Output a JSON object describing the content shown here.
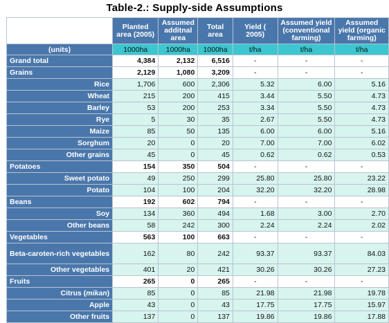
{
  "title": "Table-2.: Supply-side Assumptions",
  "headers": [
    "Planted area (2005)",
    "Assumed additnal area",
    "Total area",
    "Yield ( 2005)",
    "Assumed yield (conventional farming)",
    "Assumed yield (organic farming)"
  ],
  "units_label": "(units)",
  "units": [
    "1000ha",
    "1000ha",
    "1000ha",
    "t/ha",
    "t/ha",
    "t/ha"
  ],
  "rows": [
    {
      "label": "Grand total",
      "kind": "cat",
      "values": [
        "4,384",
        "2,132",
        "6,516",
        "-",
        "-",
        "-"
      ]
    },
    {
      "label": "Grains",
      "kind": "cat",
      "values": [
        "2,129",
        "1,080",
        "3,209",
        "-",
        "-",
        "-"
      ]
    },
    {
      "label": "Rice",
      "kind": "sub",
      "values": [
        "1,706",
        "600",
        "2,306",
        "5.32",
        "6.00",
        "5.16"
      ]
    },
    {
      "label": "Wheat",
      "kind": "sub",
      "values": [
        "215",
        "200",
        "415",
        "3.44",
        "5.50",
        "4.73"
      ]
    },
    {
      "label": "Barley",
      "kind": "sub",
      "values": [
        "53",
        "200",
        "253",
        "3.34",
        "5.50",
        "4.73"
      ]
    },
    {
      "label": "Rye",
      "kind": "sub",
      "values": [
        "5",
        "30",
        "35",
        "2.67",
        "5.50",
        "4.73"
      ]
    },
    {
      "label": "Maize",
      "kind": "sub",
      "values": [
        "85",
        "50",
        "135",
        "6.00",
        "6.00",
        "5.16"
      ]
    },
    {
      "label": "Sorghum",
      "kind": "sub",
      "values": [
        "20",
        "0",
        "20",
        "7.00",
        "7.00",
        "6.02"
      ]
    },
    {
      "label": "Other grains",
      "kind": "sub",
      "values": [
        "45",
        "0",
        "45",
        "0.62",
        "0.62",
        "0.53"
      ]
    },
    {
      "label": "Potatoes",
      "kind": "cat",
      "values": [
        "154",
        "350",
        "504",
        "-",
        "-",
        "-"
      ]
    },
    {
      "label": "Sweet potato",
      "kind": "sub",
      "values": [
        "49",
        "250",
        "299",
        "25.80",
        "25.80",
        "23.22"
      ]
    },
    {
      "label": "Potato",
      "kind": "sub",
      "values": [
        "104",
        "100",
        "204",
        "32.20",
        "32.20",
        "28.98"
      ]
    },
    {
      "label": "Beans",
      "kind": "cat",
      "values": [
        "192",
        "602",
        "794",
        "-",
        "-",
        "-"
      ]
    },
    {
      "label": "Soy",
      "kind": "sub",
      "values": [
        "134",
        "360",
        "494",
        "1.68",
        "3.00",
        "2.70"
      ]
    },
    {
      "label": "Other beans",
      "kind": "sub",
      "values": [
        "58",
        "242",
        "300",
        "2.24",
        "2.24",
        "2.02"
      ]
    },
    {
      "label": "Vegetables",
      "kind": "cat",
      "values": [
        "563",
        "100",
        "663",
        "-",
        "-",
        "-"
      ]
    },
    {
      "label": "Beta-caroten-rich vegetables",
      "kind": "sub",
      "tall": true,
      "values": [
        "162",
        "80",
        "242",
        "93.37",
        "93.37",
        "84.03"
      ]
    },
    {
      "label": "Other vegetables",
      "kind": "sub",
      "values": [
        "401",
        "20",
        "421",
        "30.26",
        "30.26",
        "27.23"
      ]
    },
    {
      "label": "Fruits",
      "kind": "cat",
      "values": [
        "265",
        "0",
        "265",
        "-",
        "-",
        "-"
      ]
    },
    {
      "label": "Citrus (mikan)",
      "kind": "sub",
      "values": [
        "85",
        "0",
        "85",
        "21.98",
        "21.98",
        "19.78"
      ]
    },
    {
      "label": "Apple",
      "kind": "sub",
      "values": [
        "43",
        "0",
        "43",
        "17.75",
        "17.75",
        "15.97"
      ]
    },
    {
      "label": "Other fruits",
      "kind": "sub",
      "values": [
        "137",
        "0",
        "137",
        "19.86",
        "19.86",
        "17.88"
      ]
    }
  ]
}
